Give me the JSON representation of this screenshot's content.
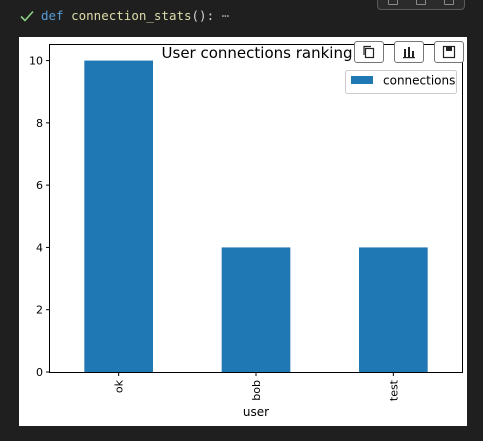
{
  "cell": {
    "status": "success",
    "code_keyword": "def",
    "code_function": "connection_stats",
    "code_suffix": "():",
    "collapsed_marker": "⋯"
  },
  "output_toolbar": {
    "copy_icon": "copy-icon",
    "chart_icon": "bar-chart-icon",
    "save_icon": "save-icon"
  },
  "chart_data": {
    "type": "bar",
    "title": "User connections ranking",
    "xlabel": "user",
    "ylabel": "",
    "categories": [
      "ok",
      "bob",
      "test"
    ],
    "series": [
      {
        "name": "connections",
        "values": [
          10,
          4,
          4
        ],
        "color": "#1f77b4"
      }
    ],
    "ylim": [
      0,
      10.5
    ],
    "yticks": [
      0,
      2,
      4,
      6,
      8,
      10
    ],
    "grid": false,
    "legend": "top-right",
    "xtick_rotation": "vertical"
  }
}
